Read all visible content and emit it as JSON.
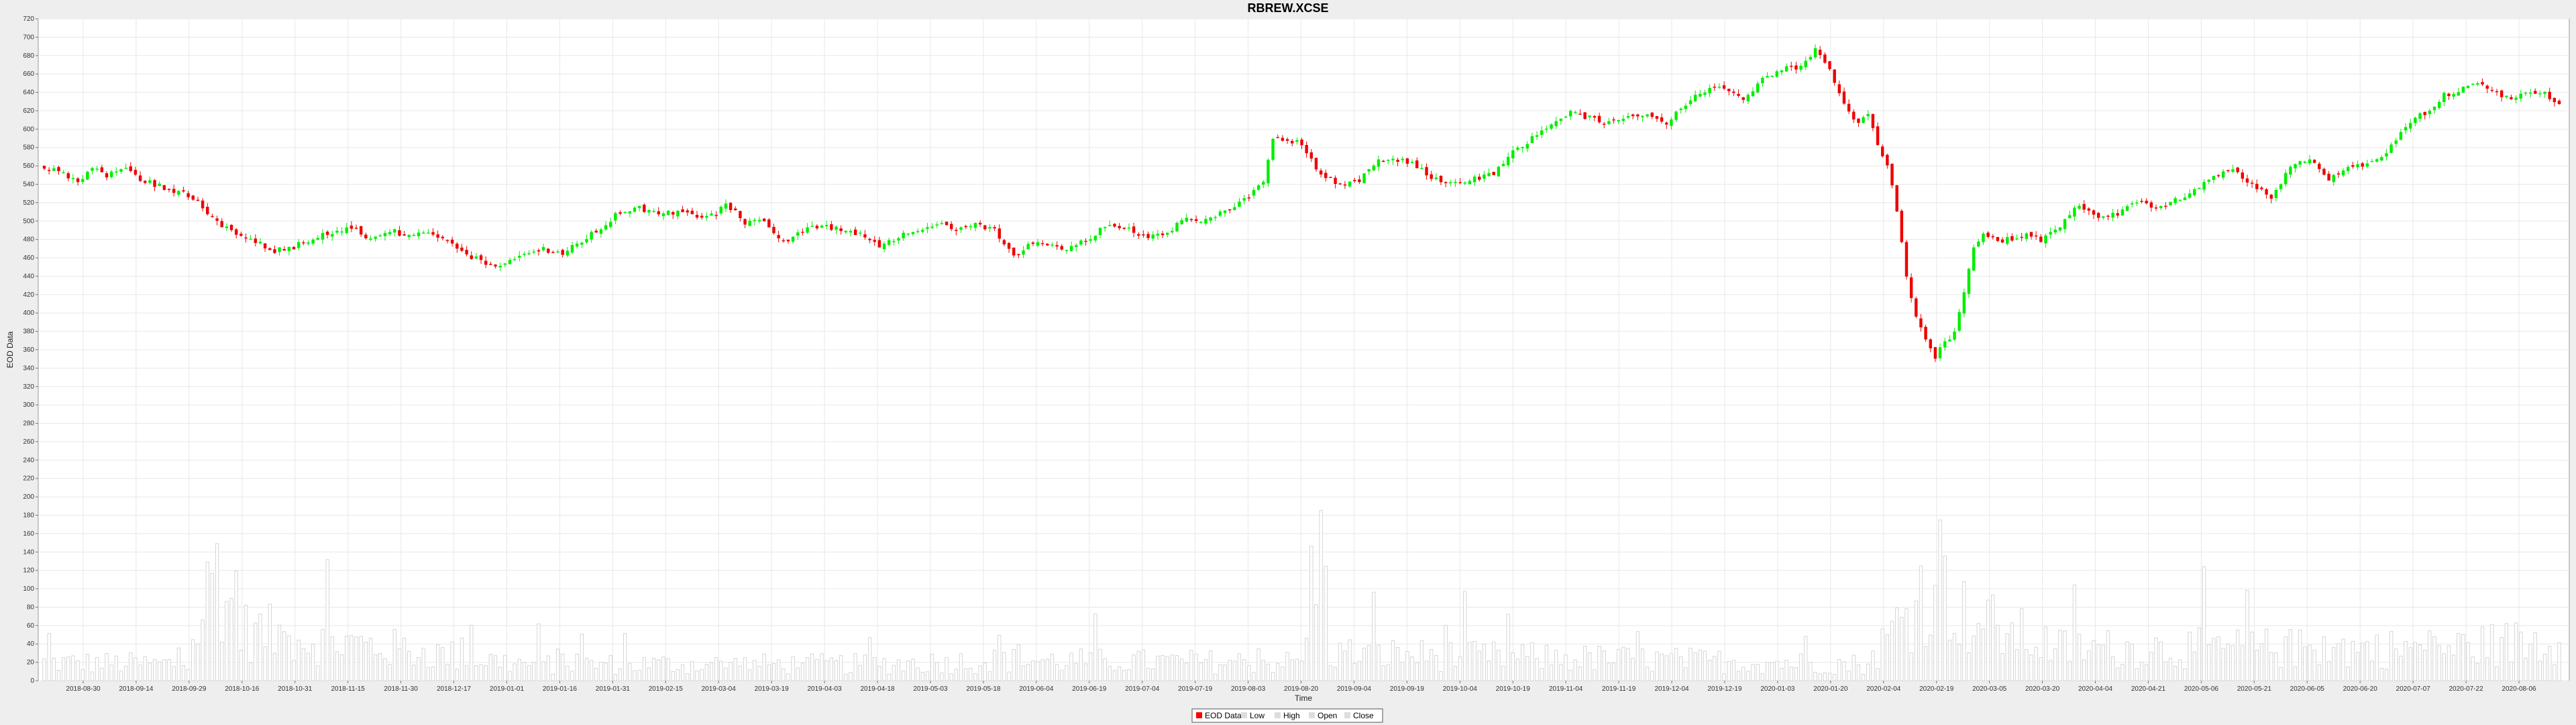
{
  "chart_data": {
    "type": "candlestick",
    "title": "RBREW.XCSE",
    "xlabel": "Time",
    "ylabel": "EOD Data",
    "ylim": [
      0,
      720
    ],
    "y_ticks": [
      0,
      20,
      40,
      60,
      80,
      100,
      120,
      140,
      160,
      180,
      200,
      220,
      240,
      260,
      280,
      300,
      320,
      340,
      360,
      380,
      400,
      420,
      440,
      460,
      480,
      500,
      520,
      540,
      560,
      580,
      600,
      620,
      640,
      660,
      680,
      700,
      720
    ],
    "grid": true,
    "legend_position": "bottom-center",
    "x_ticks": [
      "2018-08-30",
      "2018-09-14",
      "2018-09-29",
      "2018-10-16",
      "2018-10-31",
      "2018-11-15",
      "2018-11-30",
      "2018-12-17",
      "2019-01-01",
      "2019-01-16",
      "2019-01-31",
      "2019-02-15",
      "2019-03-04",
      "2019-03-19",
      "2019-04-03",
      "2019-04-18",
      "2019-05-03",
      "2019-05-18",
      "2019-06-04",
      "2019-06-19",
      "2019-07-04",
      "2019-07-19",
      "2019-08-03",
      "2019-08-20",
      "2019-09-04",
      "2019-09-19",
      "2019-10-04",
      "2019-10-19",
      "2019-11-04",
      "2019-11-19",
      "2019-12-04",
      "2019-12-19",
      "2020-01-03",
      "2020-01-20",
      "2020-02-04",
      "2020-02-19",
      "2020-03-05",
      "2020-03-20",
      "2020-04-04",
      "2020-04-21",
      "2020-05-06",
      "2020-05-21",
      "2020-06-05",
      "2020-06-20",
      "2020-07-07",
      "2020-07-22",
      "2020-08-06"
    ],
    "close_anchors": [
      [
        0,
        560
      ],
      [
        4,
        552
      ],
      [
        7,
        540
      ],
      [
        10,
        558
      ],
      [
        13,
        548
      ],
      [
        17,
        560
      ],
      [
        19,
        548
      ],
      [
        24,
        538
      ],
      [
        28,
        532
      ],
      [
        32,
        522
      ],
      [
        36,
        498
      ],
      [
        40,
        485
      ],
      [
        44,
        478
      ],
      [
        48,
        468
      ],
      [
        52,
        472
      ],
      [
        56,
        482
      ],
      [
        60,
        488
      ],
      [
        64,
        493
      ],
      [
        68,
        480
      ],
      [
        72,
        490
      ],
      [
        76,
        483
      ],
      [
        80,
        486
      ],
      [
        84,
        478
      ],
      [
        88,
        462
      ],
      [
        92,
        455
      ],
      [
        96,
        452
      ],
      [
        100,
        463
      ],
      [
        104,
        470
      ],
      [
        108,
        464
      ],
      [
        112,
        478
      ],
      [
        116,
        493
      ],
      [
        120,
        510
      ],
      [
        124,
        514
      ],
      [
        128,
        507
      ],
      [
        132,
        510
      ],
      [
        136,
        505
      ],
      [
        140,
        508
      ],
      [
        142,
        520
      ],
      [
        146,
        498
      ],
      [
        150,
        500
      ],
      [
        154,
        478
      ],
      [
        158,
        489
      ],
      [
        162,
        495
      ],
      [
        166,
        490
      ],
      [
        170,
        486
      ],
      [
        174,
        474
      ],
      [
        178,
        483
      ],
      [
        182,
        492
      ],
      [
        186,
        497
      ],
      [
        190,
        489
      ],
      [
        194,
        496
      ],
      [
        198,
        490
      ],
      [
        202,
        460
      ],
      [
        206,
        478
      ],
      [
        210,
        473
      ],
      [
        214,
        470
      ],
      [
        218,
        483
      ],
      [
        222,
        498
      ],
      [
        226,
        492
      ],
      [
        230,
        482
      ],
      [
        234,
        488
      ],
      [
        238,
        505
      ],
      [
        242,
        500
      ],
      [
        246,
        510
      ],
      [
        250,
        522
      ],
      [
        254,
        545
      ],
      [
        256,
        592
      ],
      [
        258,
        590
      ],
      [
        262,
        585
      ],
      [
        266,
        548
      ],
      [
        270,
        540
      ],
      [
        274,
        545
      ],
      [
        278,
        565
      ],
      [
        282,
        567
      ],
      [
        286,
        560
      ],
      [
        290,
        545
      ],
      [
        294,
        541
      ],
      [
        298,
        546
      ],
      [
        302,
        552
      ],
      [
        306,
        575
      ],
      [
        310,
        590
      ],
      [
        314,
        605
      ],
      [
        318,
        617
      ],
      [
        322,
        612
      ],
      [
        326,
        606
      ],
      [
        330,
        613
      ],
      [
        334,
        616
      ],
      [
        338,
        605
      ],
      [
        342,
        628
      ],
      [
        346,
        641
      ],
      [
        350,
        644
      ],
      [
        354,
        630
      ],
      [
        358,
        653
      ],
      [
        362,
        665
      ],
      [
        366,
        668
      ],
      [
        369,
        688
      ],
      [
        372,
        663
      ],
      [
        375,
        628
      ],
      [
        378,
        604
      ],
      [
        380,
        618
      ],
      [
        382,
        580
      ],
      [
        384,
        560
      ],
      [
        386,
        512
      ],
      [
        388,
        440
      ],
      [
        390,
        395
      ],
      [
        392,
        372
      ],
      [
        394,
        352
      ],
      [
        396,
        368
      ],
      [
        398,
        380
      ],
      [
        400,
        420
      ],
      [
        402,
        470
      ],
      [
        404,
        487
      ],
      [
        408,
        478
      ],
      [
        412,
        485
      ],
      [
        416,
        480
      ],
      [
        420,
        493
      ],
      [
        424,
        518
      ],
      [
        428,
        503
      ],
      [
        432,
        507
      ],
      [
        436,
        522
      ],
      [
        440,
        515
      ],
      [
        444,
        522
      ],
      [
        448,
        532
      ],
      [
        452,
        550
      ],
      [
        456,
        557
      ],
      [
        460,
        540
      ],
      [
        464,
        525
      ],
      [
        468,
        560
      ],
      [
        472,
        566
      ],
      [
        476,
        545
      ],
      [
        480,
        558
      ],
      [
        484,
        560
      ],
      [
        488,
        575
      ],
      [
        492,
        605
      ],
      [
        496,
        618
      ],
      [
        500,
        637
      ],
      [
        504,
        644
      ],
      [
        508,
        650
      ],
      [
        512,
        634
      ],
      [
        516,
        636
      ],
      [
        520,
        641
      ],
      [
        524,
        628
      ]
    ],
    "volume_anchors": [
      [
        0,
        20
      ],
      [
        30,
        18
      ],
      [
        36,
        130
      ],
      [
        40,
        55
      ],
      [
        100,
        18
      ],
      [
        170,
        18
      ],
      [
        200,
        22
      ],
      [
        262,
        20
      ],
      [
        266,
        182
      ],
      [
        268,
        30
      ],
      [
        380,
        18
      ],
      [
        386,
        60
      ],
      [
        390,
        90
      ],
      [
        395,
        120
      ],
      [
        400,
        70
      ],
      [
        408,
        55
      ],
      [
        420,
        35
      ],
      [
        500,
        35
      ],
      [
        524,
        45
      ]
    ]
  },
  "legend": {
    "items": [
      {
        "label": "EOD Data",
        "color": "#ff0000"
      },
      {
        "label": "Low",
        "color": "#dddddd"
      },
      {
        "label": "High",
        "color": "#dddddd"
      },
      {
        "label": "Open",
        "color": "#dddddd"
      },
      {
        "label": "Close",
        "color": "#dddddd"
      }
    ]
  },
  "colors": {
    "up": "#00ee00",
    "down": "#ee0000",
    "volume": "#cccccc",
    "grid": "#e8e8e8",
    "plot_bg": "#ffffff"
  }
}
